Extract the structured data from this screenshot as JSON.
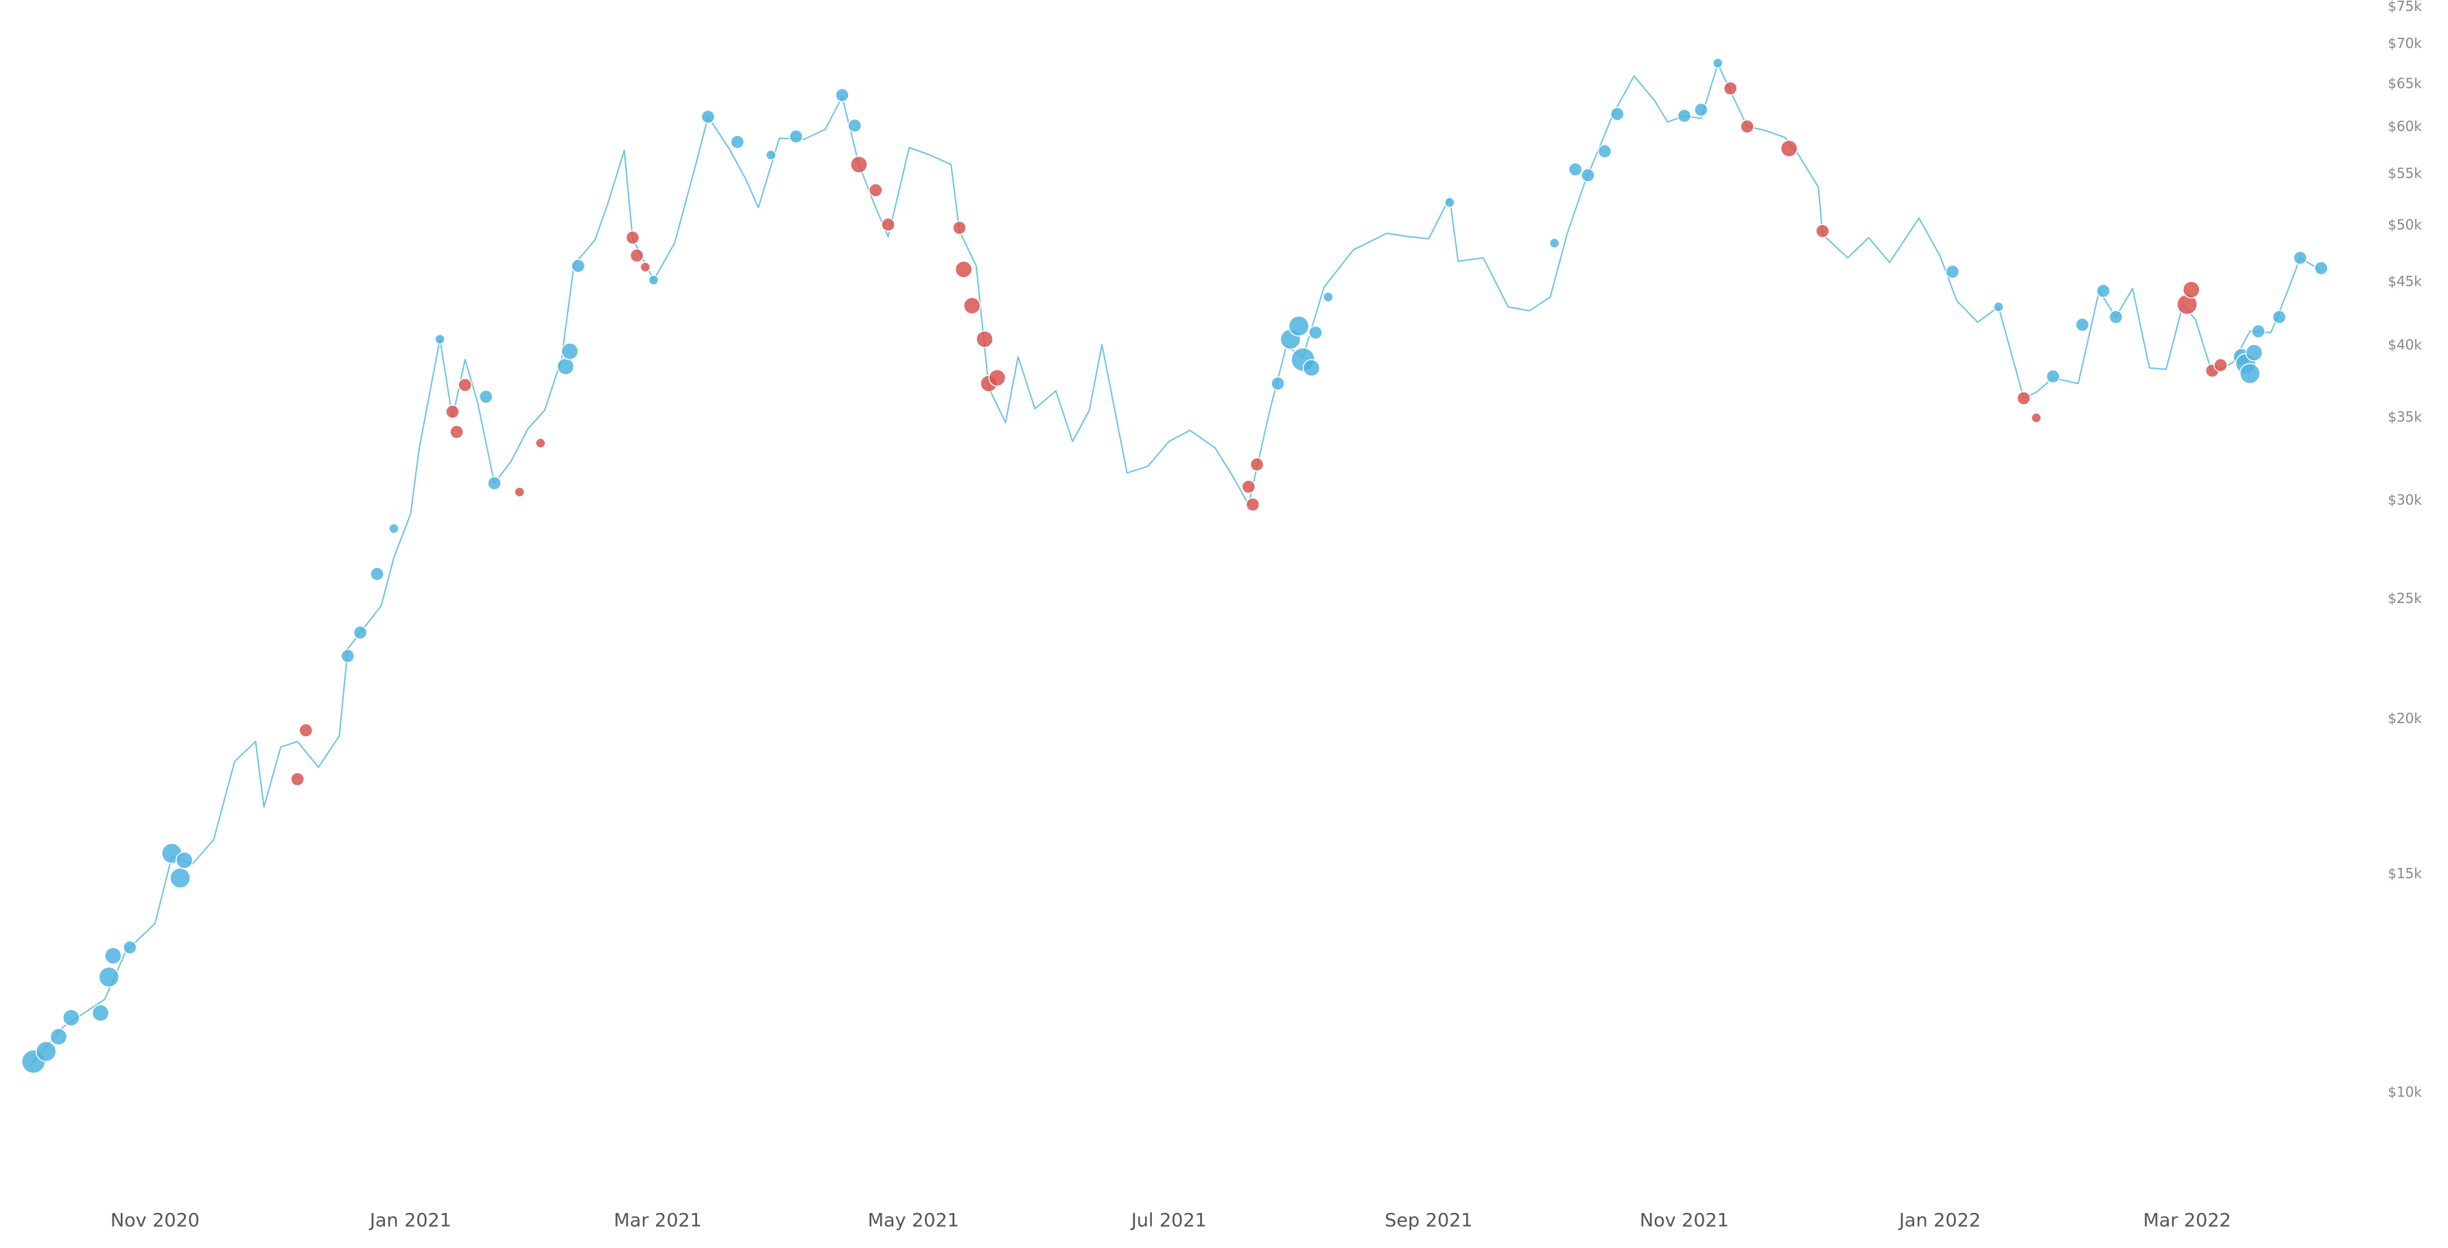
{
  "chart_data": {
    "type": "line",
    "log_y": true,
    "grid": false,
    "xlim": [
      "2020-09-25",
      "2022-04-10"
    ],
    "ylim": [
      8400,
      76000
    ],
    "xticks": [
      {
        "value": "2020-11-01",
        "label": "Nov 2020"
      },
      {
        "value": "2021-01-01",
        "label": "Jan 2021"
      },
      {
        "value": "2021-03-01",
        "label": "Mar 2021"
      },
      {
        "value": "2021-05-01",
        "label": "May 2021"
      },
      {
        "value": "2021-07-01",
        "label": "Jul 2021"
      },
      {
        "value": "2021-09-01",
        "label": "Sep 2021"
      },
      {
        "value": "2021-11-01",
        "label": "Nov 2021"
      },
      {
        "value": "2022-01-01",
        "label": "Jan 2022"
      },
      {
        "value": "2022-03-01",
        "label": "Mar 2022"
      }
    ],
    "yticks": [
      {
        "value": 10000,
        "label": "$10k"
      },
      {
        "value": 15000,
        "label": "$15k"
      },
      {
        "value": 20000,
        "label": "$20k"
      },
      {
        "value": 25000,
        "label": "$25k"
      },
      {
        "value": 30000,
        "label": "$30k"
      },
      {
        "value": 35000,
        "label": "$35k"
      },
      {
        "value": 40000,
        "label": "$40k"
      },
      {
        "value": 45000,
        "label": "$45k"
      },
      {
        "value": 50000,
        "label": "$50k"
      },
      {
        "value": 55000,
        "label": "$55k"
      },
      {
        "value": 60000,
        "label": "$60k"
      },
      {
        "value": 65000,
        "label": "$65k"
      },
      {
        "value": 70000,
        "label": "$70k"
      },
      {
        "value": 75000,
        "label": "$75k"
      }
    ],
    "series": [
      {
        "type": "line",
        "color": "#6cc3e6",
        "x": [
          "2020-10-02",
          "2020-10-10",
          "2020-10-20",
          "2020-10-25",
          "2020-11-01",
          "2020-11-05",
          "2020-11-10",
          "2020-11-15",
          "2020-11-20",
          "2020-11-25",
          "2020-11-27",
          "2020-12-01",
          "2020-12-05",
          "2020-12-10",
          "2020-12-15",
          "2020-12-17",
          "2020-12-20",
          "2020-12-25",
          "2020-12-28",
          "2021-01-01",
          "2021-01-03",
          "2021-01-08",
          "2021-01-11",
          "2021-01-14",
          "2021-01-17",
          "2021-01-21",
          "2021-01-25",
          "2021-01-29",
          "2021-02-02",
          "2021-02-06",
          "2021-02-09",
          "2021-02-14",
          "2021-02-17",
          "2021-02-21",
          "2021-02-23",
          "2021-02-28",
          "2021-03-05",
          "2021-03-10",
          "2021-03-13",
          "2021-03-18",
          "2021-03-22",
          "2021-03-25",
          "2021-03-30",
          "2021-04-05",
          "2021-04-10",
          "2021-04-14",
          "2021-04-18",
          "2021-04-22",
          "2021-04-25",
          "2021-04-30",
          "2021-05-05",
          "2021-05-10",
          "2021-05-12",
          "2021-05-16",
          "2021-05-19",
          "2021-05-23",
          "2021-05-26",
          "2021-05-30",
          "2021-06-04",
          "2021-06-08",
          "2021-06-12",
          "2021-06-15",
          "2021-06-21",
          "2021-06-26",
          "2021-07-01",
          "2021-07-06",
          "2021-07-12",
          "2021-07-16",
          "2021-07-20",
          "2021-07-25",
          "2021-07-29",
          "2021-08-02",
          "2021-08-07",
          "2021-08-14",
          "2021-08-22",
          "2021-08-27",
          "2021-09-01",
          "2021-09-06",
          "2021-09-08",
          "2021-09-14",
          "2021-09-20",
          "2021-09-25",
          "2021-09-30",
          "2021-10-04",
          "2021-10-08",
          "2021-10-15",
          "2021-10-20",
          "2021-10-25",
          "2021-10-28",
          "2021-11-01",
          "2021-11-05",
          "2021-11-09",
          "2021-11-12",
          "2021-11-16",
          "2021-11-20",
          "2021-11-25",
          "2021-11-28",
          "2021-12-03",
          "2021-12-04",
          "2021-12-10",
          "2021-12-15",
          "2021-12-20",
          "2021-12-27",
          "2022-01-01",
          "2022-01-05",
          "2022-01-10",
          "2022-01-15",
          "2022-01-21",
          "2022-01-24",
          "2022-01-28",
          "2022-02-03",
          "2022-02-08",
          "2022-02-12",
          "2022-02-16",
          "2022-02-20",
          "2022-02-24",
          "2022-02-28",
          "2022-03-03",
          "2022-03-07",
          "2022-03-12",
          "2022-03-16",
          "2022-03-21",
          "2022-03-25",
          "2022-03-28",
          "2022-04-02"
        ],
        "values": [
          10500,
          11300,
          11900,
          13000,
          13700,
          15500,
          15300,
          16000,
          18500,
          19200,
          17000,
          19000,
          19200,
          18300,
          19400,
          22800,
          23500,
          24700,
          27000,
          29300,
          33000,
          40500,
          35000,
          39000,
          36000,
          31000,
          32300,
          34300,
          35500,
          39000,
          46500,
          48700,
          52000,
          57500,
          48800,
          45200,
          48400,
          55900,
          61200,
          57700,
          54500,
          51700,
          58800,
          58700,
          59800,
          63500,
          56000,
          51700,
          49000,
          57800,
          57000,
          56000,
          49500,
          46400,
          37000,
          34700,
          39200,
          35600,
          36800,
          33500,
          35500,
          40100,
          31600,
          32000,
          33500,
          34200,
          33100,
          31500,
          29800,
          35400,
          40000,
          39200,
          44600,
          47800,
          49300,
          49000,
          48800,
          52700,
          46800,
          47100,
          43000,
          42700,
          43800,
          49200,
          53900,
          61500,
          66000,
          63000,
          60600,
          61300,
          61000,
          67500,
          64200,
          60100,
          59700,
          58900,
          57200,
          53700,
          49200,
          47100,
          48900,
          46700,
          50700,
          47300,
          43500,
          41800,
          43000,
          36300,
          36700,
          37700,
          37300,
          44300,
          42200,
          44500,
          38400,
          38300,
          43200,
          42000,
          38000,
          38800,
          41100,
          41000,
          44300,
          47100,
          46000
        ]
      },
      {
        "type": "scatter",
        "color": "#4db3df",
        "x": [
          "2020-10-03",
          "2020-10-06",
          "2020-10-09",
          "2020-10-12",
          "2020-10-19",
          "2020-10-21",
          "2020-10-22",
          "2020-10-26",
          "2020-11-05",
          "2020-11-07",
          "2020-11-08",
          "2020-12-17",
          "2020-12-20",
          "2020-12-24",
          "2020-12-28",
          "2021-01-08",
          "2021-01-19",
          "2021-01-21",
          "2021-02-07",
          "2021-02-08",
          "2021-02-10",
          "2021-02-28",
          "2021-03-13",
          "2021-03-20",
          "2021-03-28",
          "2021-04-03",
          "2021-04-14",
          "2021-04-17",
          "2021-07-27",
          "2021-07-30",
          "2021-08-01",
          "2021-08-02",
          "2021-08-04",
          "2021-08-05",
          "2021-08-08",
          "2021-09-06",
          "2021-10-01",
          "2021-10-06",
          "2021-10-09",
          "2021-10-13",
          "2021-10-16",
          "2021-11-01",
          "2021-11-05",
          "2021-11-09",
          "2022-01-04",
          "2022-01-15",
          "2022-01-28",
          "2022-02-04",
          "2022-02-09",
          "2022-02-12",
          "2022-03-14",
          "2022-03-15",
          "2022-03-16",
          "2022-03-17",
          "2022-03-18",
          "2022-03-23",
          "2022-03-28",
          "2022-04-02"
        ],
        "values": [
          10600,
          10800,
          11100,
          11500,
          11600,
          12400,
          12900,
          13100,
          15600,
          14900,
          15400,
          22500,
          23500,
          26200,
          28500,
          40500,
          36400,
          31000,
          38500,
          39600,
          46400,
          45200,
          61200,
          58400,
          57000,
          59000,
          63700,
          60200,
          37300,
          40500,
          41500,
          39000,
          38400,
          41000,
          43800,
          52200,
          48400,
          55500,
          54900,
          57400,
          61500,
          61300,
          62000,
          67600,
          45900,
          43000,
          37800,
          41600,
          44300,
          42200,
          39200,
          38700,
          38000,
          39500,
          41100,
          42200,
          47100,
          46200
        ],
        "sizes": [
          5,
          4,
          3,
          3,
          3,
          4,
          3,
          2,
          4,
          4,
          3,
          2,
          2,
          2,
          1,
          1,
          2,
          2,
          3,
          3,
          2,
          1,
          2,
          2,
          1,
          2,
          2,
          2,
          2,
          4,
          4,
          5,
          3,
          2,
          1,
          1,
          1,
          2,
          2,
          2,
          2,
          2,
          2,
          1,
          2,
          1,
          2,
          2,
          2,
          2,
          3,
          4,
          4,
          3,
          2,
          2,
          2,
          2
        ]
      },
      {
        "type": "scatter",
        "color": "#d9534f",
        "x": [
          "2020-12-05",
          "2020-12-07",
          "2021-01-11",
          "2021-01-12",
          "2021-01-14",
          "2021-01-27",
          "2021-02-01",
          "2021-02-23",
          "2021-02-24",
          "2021-02-26",
          "2021-04-18",
          "2021-04-22",
          "2021-04-25",
          "2021-05-12",
          "2021-05-13",
          "2021-05-15",
          "2021-05-18",
          "2021-05-19",
          "2021-05-21",
          "2021-07-20",
          "2021-07-21",
          "2021-07-22",
          "2021-11-12",
          "2021-11-16",
          "2021-11-26",
          "2021-12-04",
          "2022-01-21",
          "2022-01-24",
          "2022-03-01",
          "2022-03-02",
          "2022-03-07",
          "2022-03-09"
        ],
        "values": [
          17900,
          19600,
          35400,
          34100,
          37200,
          30500,
          33400,
          48900,
          47300,
          46300,
          56000,
          53400,
          50100,
          49800,
          46100,
          43100,
          40500,
          37300,
          37700,
          30800,
          29800,
          32100,
          64500,
          60100,
          57700,
          49500,
          36300,
          35000,
          43200,
          44400,
          38200,
          38600
        ],
        "sizes": [
          2,
          2,
          2,
          2,
          2,
          1,
          1,
          2,
          2,
          1,
          3,
          2,
          2,
          2,
          3,
          3,
          3,
          3,
          3,
          2,
          2,
          2,
          2,
          2,
          3,
          2,
          2,
          1,
          4,
          3,
          2,
          2
        ]
      }
    ]
  }
}
